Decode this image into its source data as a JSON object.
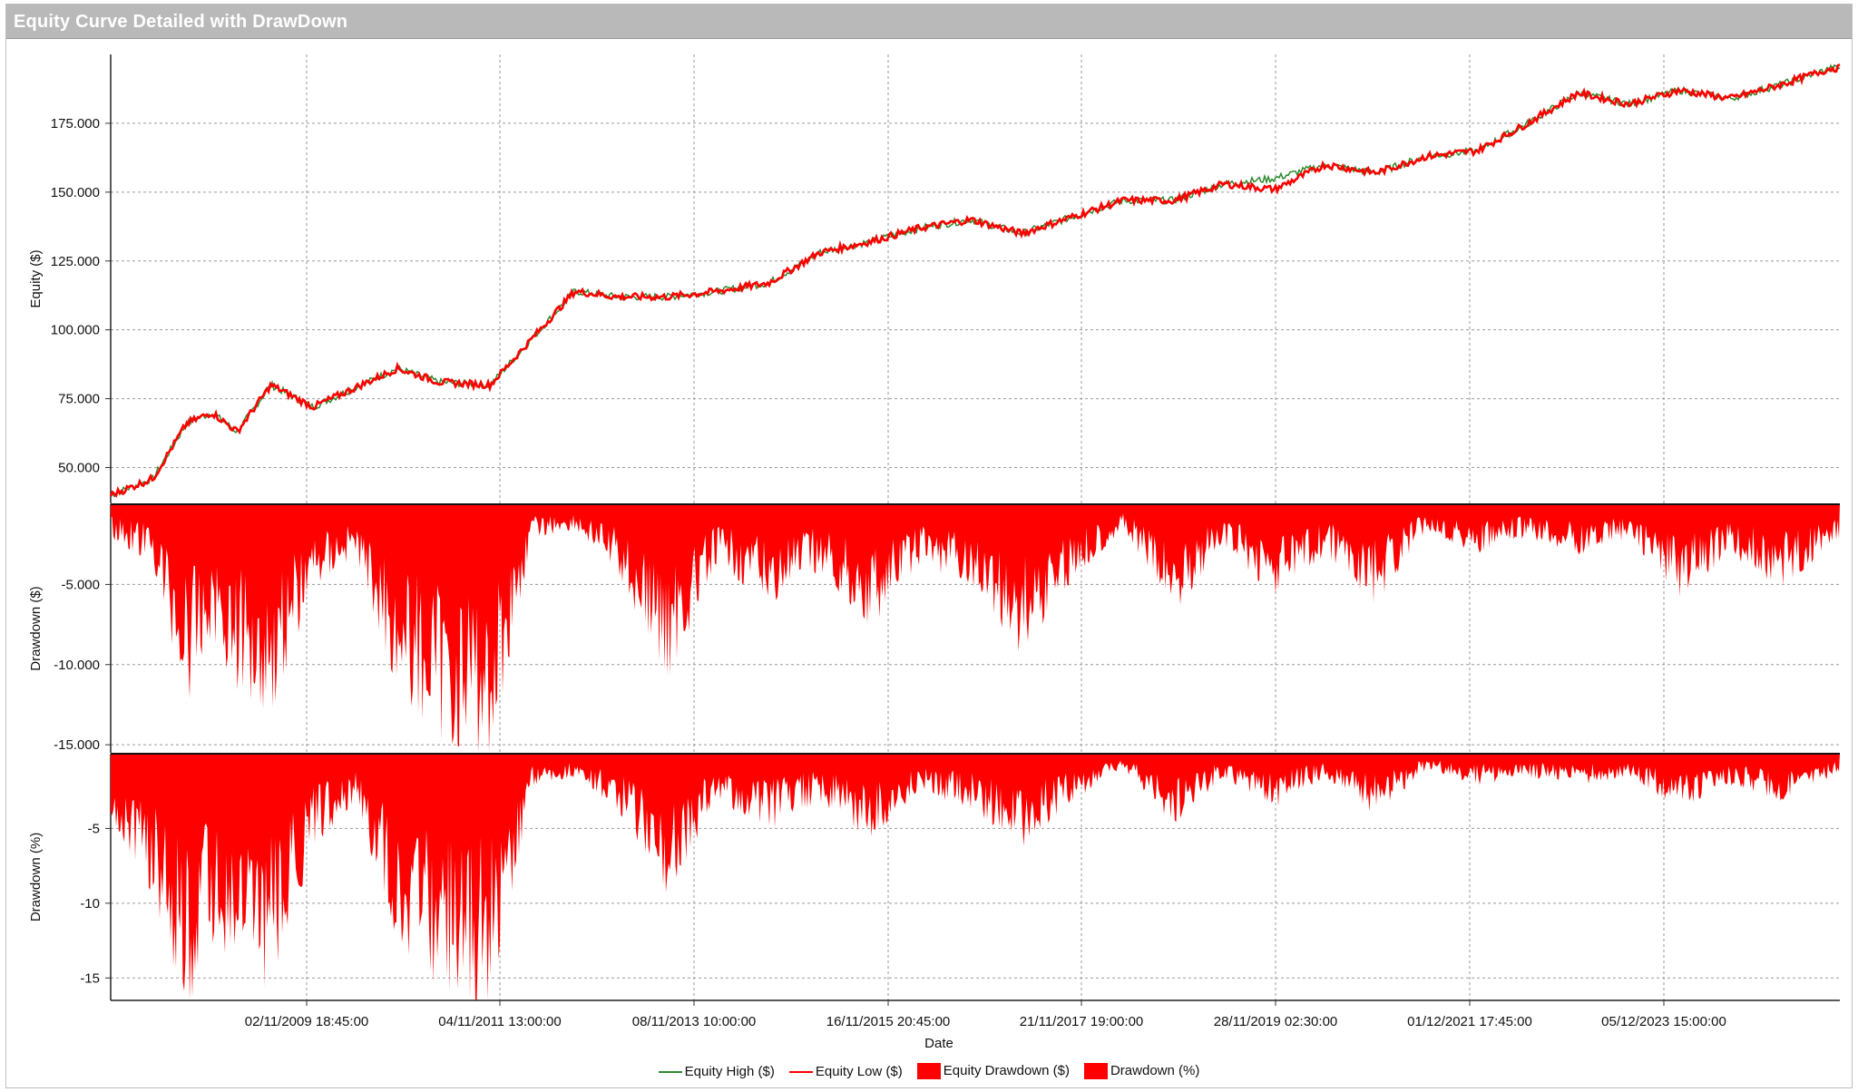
{
  "window": {
    "title": "Equity Curve Detailed with DrawDown"
  },
  "colors": {
    "equity_high": "#2e8b2e",
    "equity_low": "#ff0000",
    "drawdown_fill": "#ff0000",
    "grid": "#9a9a9a"
  },
  "chart_data": [
    {
      "type": "line",
      "panel": "equity",
      "ylabel": "Equity ($)",
      "xlabel": "",
      "ylim": [
        37000,
        200000
      ],
      "yticks": [
        50000,
        75000,
        100000,
        125000,
        150000,
        175000
      ],
      "ytick_labels": [
        "50.000",
        "75.000",
        "100.000",
        "125.000",
        "150.000",
        "175.000"
      ],
      "grid": true,
      "x": [
        "2008-01",
        "2008-06",
        "2008-10",
        "2009-01",
        "2009-04",
        "2009-08",
        "2010-01",
        "2010-06",
        "2010-11",
        "2011-04",
        "2011-10",
        "2012-03",
        "2012-08",
        "2013-01",
        "2013-07",
        "2014-01",
        "2014-07",
        "2015-01",
        "2015-07",
        "2016-01",
        "2016-07",
        "2017-01",
        "2017-07",
        "2018-01",
        "2018-07",
        "2019-01",
        "2019-07",
        "2020-01",
        "2020-07",
        "2021-01",
        "2021-07",
        "2022-01",
        "2022-07",
        "2023-01",
        "2023-07",
        "2024-01",
        "2024-07",
        "2025-01"
      ],
      "series": [
        {
          "name": "Equity Low ($)",
          "values": [
            40000,
            46000,
            66000,
            70000,
            63000,
            80000,
            72000,
            79000,
            86000,
            81000,
            80000,
            97000,
            114000,
            112000,
            112000,
            114000,
            117000,
            128000,
            132000,
            137000,
            140000,
            135000,
            141000,
            147000,
            147000,
            153000,
            151000,
            160000,
            157000,
            163000,
            165000,
            175000,
            186000,
            182000,
            187000,
            184000,
            189000,
            195000
          ]
        },
        {
          "name": "Equity High ($)",
          "values": [
            40000,
            46000,
            66000,
            70000,
            63000,
            80000,
            72000,
            79000,
            86000,
            81000,
            80000,
            97000,
            114000,
            112000,
            112000,
            114000,
            117000,
            128000,
            132000,
            137000,
            140000,
            135000,
            141000,
            147000,
            147000,
            153000,
            155000,
            160000,
            157000,
            163000,
            165000,
            175000,
            186000,
            182000,
            187000,
            184000,
            189000,
            195000
          ]
        }
      ]
    },
    {
      "type": "area",
      "panel": "drawdown_usd",
      "ylabel": "Drawdown ($)",
      "ylim": [
        -15500,
        0
      ],
      "yticks": [
        -5000,
        -10000,
        -15000
      ],
      "ytick_labels": [
        "-5.000",
        "-10.000",
        "-15.000"
      ],
      "grid": true,
      "x": [
        "2008-01",
        "2008-06",
        "2008-10",
        "2009-01",
        "2009-04",
        "2009-08",
        "2010-01",
        "2010-06",
        "2010-11",
        "2011-04",
        "2011-10",
        "2012-03",
        "2012-08",
        "2013-01",
        "2013-07",
        "2014-01",
        "2014-07",
        "2015-01",
        "2015-07",
        "2016-01",
        "2016-07",
        "2017-01",
        "2017-07",
        "2018-01",
        "2018-07",
        "2019-01",
        "2019-07",
        "2020-01",
        "2020-07",
        "2021-01",
        "2021-07",
        "2022-01",
        "2022-07",
        "2023-01",
        "2023-07",
        "2024-01",
        "2024-07",
        "2025-01"
      ],
      "series": [
        {
          "name": "Equity Drawdown ($)",
          "values": [
            -2000,
            -3500,
            -12000,
            -8000,
            -11000,
            -12500,
            -5000,
            -3000,
            -11000,
            -14000,
            -15000,
            -2000,
            -1500,
            -4000,
            -10500,
            -3500,
            -6000,
            -4000,
            -7500,
            -3500,
            -5000,
            -9000,
            -4500,
            -1500,
            -6500,
            -2500,
            -5500,
            -3000,
            -6000,
            -1500,
            -3000,
            -2000,
            -3000,
            -2000,
            -5500,
            -3000,
            -5000,
            -2500
          ]
        }
      ]
    },
    {
      "type": "area",
      "panel": "drawdown_pct",
      "ylabel": "Drawdown (%)",
      "ylim": [
        -16.5,
        0
      ],
      "yticks": [
        -5,
        -10,
        -15
      ],
      "ytick_labels": [
        "-5",
        "-10",
        "-15"
      ],
      "grid": true,
      "xlabel": "Date",
      "xtick_labels": [
        "02/11/2009 18:45:00",
        "04/11/2011 13:00:00",
        "08/11/2013 10:00:00",
        "16/11/2015 20:45:00",
        "21/11/2017 19:00:00",
        "28/11/2019 02:30:00",
        "01/12/2021 17:45:00",
        "05/12/2023 15:00:00"
      ],
      "x": [
        "2008-01",
        "2008-06",
        "2008-10",
        "2009-01",
        "2009-04",
        "2009-08",
        "2010-01",
        "2010-06",
        "2010-11",
        "2011-04",
        "2011-10",
        "2012-03",
        "2012-08",
        "2013-01",
        "2013-07",
        "2014-01",
        "2014-07",
        "2015-01",
        "2015-07",
        "2016-01",
        "2016-07",
        "2017-01",
        "2017-07",
        "2018-01",
        "2018-07",
        "2019-01",
        "2019-07",
        "2020-01",
        "2020-07",
        "2021-01",
        "2021-07",
        "2022-01",
        "2022-07",
        "2023-01",
        "2023-07",
        "2024-01",
        "2024-07",
        "2025-01"
      ],
      "series": [
        {
          "name": "Drawdown (%)",
          "values": [
            -4,
            -9,
            -16.5,
            -12,
            -14,
            -15.5,
            -6,
            -3,
            -12,
            -15,
            -16,
            -2,
            -1.5,
            -3.5,
            -9,
            -3,
            -5,
            -3,
            -5.5,
            -2.5,
            -3.5,
            -6,
            -3,
            -1,
            -4.5,
            -1.5,
            -3.5,
            -1.5,
            -4,
            -1,
            -2,
            -1.5,
            -2,
            -1.5,
            -3.5,
            -2,
            -3,
            -1.5
          ]
        }
      ]
    }
  ],
  "legend": [
    {
      "label": "Equity High ($)",
      "kind": "line",
      "color": "#2e8b2e"
    },
    {
      "label": "Equity Low ($)",
      "kind": "line",
      "color": "#ff0000"
    },
    {
      "label": "Equity Drawdown ($)",
      "kind": "box",
      "color": "#ff0000"
    },
    {
      "label": "Drawdown (%)",
      "kind": "box",
      "color": "#ff0000"
    }
  ]
}
